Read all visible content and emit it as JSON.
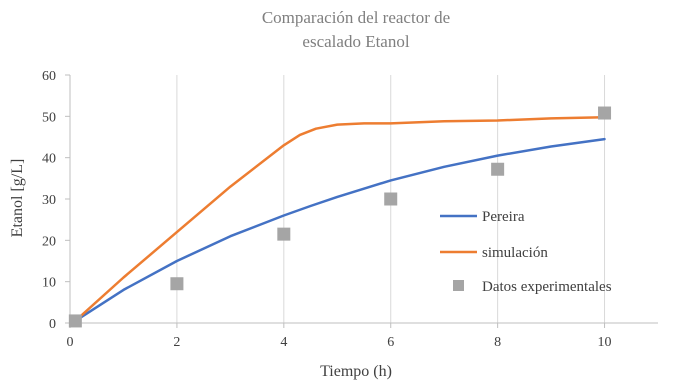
{
  "chart_data": {
    "type": "line",
    "title": "Comparación del reactor de escalado Etanol",
    "title_lines": [
      "Comparación del reactor de",
      "escalado Etanol"
    ],
    "xlabel": "Tiempo (h)",
    "ylabel": "Etanol [g/L]",
    "xlim": [
      0,
      11
    ],
    "ylim": [
      0,
      60
    ],
    "x_ticks": [
      0,
      2,
      4,
      6,
      8,
      10
    ],
    "y_ticks": [
      0,
      10,
      20,
      30,
      40,
      50,
      60
    ],
    "grid": "vertical",
    "legend_position": "right",
    "series": [
      {
        "name": "Pereira",
        "kind": "line",
        "color": "#4472C4",
        "x": [
          0.1,
          1,
          2,
          3,
          4,
          4.5,
          5,
          6,
          7,
          8,
          9,
          10
        ],
        "y": [
          0.5,
          8,
          15,
          21,
          26,
          28.3,
          30.5,
          34.5,
          37.8,
          40.5,
          42.7,
          44.5
        ]
      },
      {
        "name": "simulación",
        "kind": "line",
        "color": "#ED7D31",
        "x": [
          0.1,
          1,
          2,
          3,
          4,
          4.3,
          4.6,
          5,
          5.5,
          6,
          7,
          8,
          9,
          10
        ],
        "y": [
          0.5,
          11,
          22,
          33,
          43,
          45.5,
          47,
          48,
          48.3,
          48.3,
          48.8,
          49,
          49.5,
          49.8
        ]
      },
      {
        "name": "Datos experimentales",
        "kind": "marker",
        "color": "#A5A5A5",
        "x": [
          0.1,
          2,
          4,
          6,
          8,
          10
        ],
        "y": [
          0.5,
          9.5,
          21.5,
          30,
          37.2,
          50.8
        ]
      }
    ]
  }
}
